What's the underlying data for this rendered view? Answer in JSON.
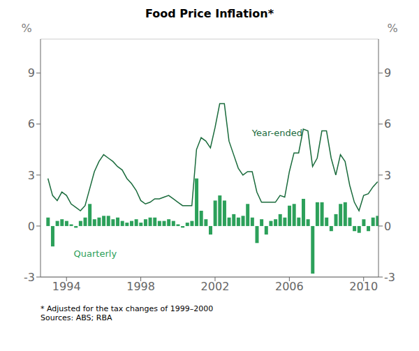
{
  "chart_data": {
    "type": "bar+line",
    "title": "Food Price Inflation*",
    "ylabel": "%",
    "y2label": "%",
    "x": [
      1993,
      1993.25,
      1993.5,
      1993.75,
      1994,
      1994.25,
      1994.5,
      1994.75,
      1995,
      1995.25,
      1995.5,
      1995.75,
      1996,
      1996.25,
      1996.5,
      1996.75,
      1997,
      1997.25,
      1997.5,
      1997.75,
      1998,
      1998.25,
      1998.5,
      1998.75,
      1999,
      1999.25,
      1999.5,
      1999.75,
      2000,
      2000.25,
      2000.5,
      2000.75,
      2001,
      2001.25,
      2001.5,
      2001.75,
      2002,
      2002.25,
      2002.5,
      2002.75,
      2003,
      2003.25,
      2003.5,
      2003.75,
      2004,
      2004.25,
      2004.5,
      2004.75,
      2005,
      2005.25,
      2005.5,
      2005.75,
      2006,
      2006.25,
      2006.5,
      2006.75,
      2007,
      2007.25,
      2007.5,
      2007.75,
      2008,
      2008.25,
      2008.5,
      2008.75,
      2009,
      2009.25,
      2009.5,
      2009.75,
      2010,
      2010.25,
      2010.5,
      2010.75
    ],
    "series": [
      {
        "name": "Quarterly",
        "type": "bar",
        "color": "#2ca05a",
        "values": [
          0.5,
          -1.2,
          0.3,
          0.4,
          0.3,
          0.1,
          -0.1,
          0.3,
          0.5,
          1.3,
          0.4,
          0.5,
          0.6,
          0.6,
          0.4,
          0.5,
          0.3,
          0.2,
          0.3,
          0.4,
          0.2,
          0.4,
          0.5,
          0.5,
          0.3,
          0.3,
          0.4,
          0.3,
          0.1,
          -0.1,
          0.2,
          0.3,
          2.8,
          0.9,
          0.4,
          -0.5,
          1.5,
          1.8,
          1.5,
          0.5,
          0.7,
          0.5,
          0.6,
          1.3,
          0.5,
          -1.0,
          0.4,
          -0.5,
          0.3,
          0.4,
          0.7,
          0.5,
          1.2,
          1.3,
          0.5,
          1.6,
          0.4,
          -2.8,
          1.4,
          1.4,
          0.5,
          -0.3,
          0.7,
          1.3,
          1.4,
          0.5,
          -0.3,
          -0.4,
          0.4,
          -0.3,
          0.5,
          0.6
        ]
      },
      {
        "name": "Year-ended",
        "type": "line",
        "color": "#1a6b3c",
        "values": [
          2.8,
          1.8,
          1.5,
          2.0,
          1.8,
          1.3,
          1.1,
          0.9,
          1.2,
          2.2,
          3.2,
          3.8,
          4.2,
          4.0,
          3.8,
          3.5,
          3.3,
          2.8,
          2.5,
          2.1,
          1.5,
          1.3,
          1.4,
          1.6,
          1.6,
          1.7,
          1.8,
          1.6,
          1.4,
          1.2,
          1.2,
          1.2,
          4.5,
          5.2,
          5.0,
          4.6,
          5.8,
          7.2,
          7.2,
          5.0,
          4.2,
          3.4,
          3.0,
          3.2,
          3.2,
          2.0,
          1.4,
          1.4,
          1.4,
          1.4,
          1.8,
          1.7,
          3.2,
          4.3,
          4.3,
          5.7,
          5.6,
          3.5,
          4.0,
          5.6,
          5.6,
          4.0,
          3.0,
          4.2,
          3.8,
          2.4,
          1.4,
          0.9,
          1.8,
          1.9,
          2.3,
          2.6
        ]
      }
    ],
    "xlim": [
      1992.6,
      2010.8
    ],
    "xticks": [
      1994,
      1998,
      2002,
      2006,
      2010
    ],
    "ylim": [
      -3,
      11
    ],
    "yticks": [
      -3,
      0,
      3,
      6,
      9
    ],
    "y2lim": [
      -3,
      11
    ],
    "y2ticks": [
      -3,
      0,
      3,
      6,
      9
    ],
    "grid": true,
    "annotations": [
      {
        "text": "Year-ended",
        "x": 2003.8,
        "y": 5.5,
        "color": "#1a6b3c"
      },
      {
        "text": "Quarterly",
        "x": 1994.2,
        "y": -1.6,
        "color": "#2ca05a"
      }
    ],
    "footnote": "*    Adjusted for the tax changes of 1999–2000",
    "sources": "Sources: ABS; RBA"
  }
}
